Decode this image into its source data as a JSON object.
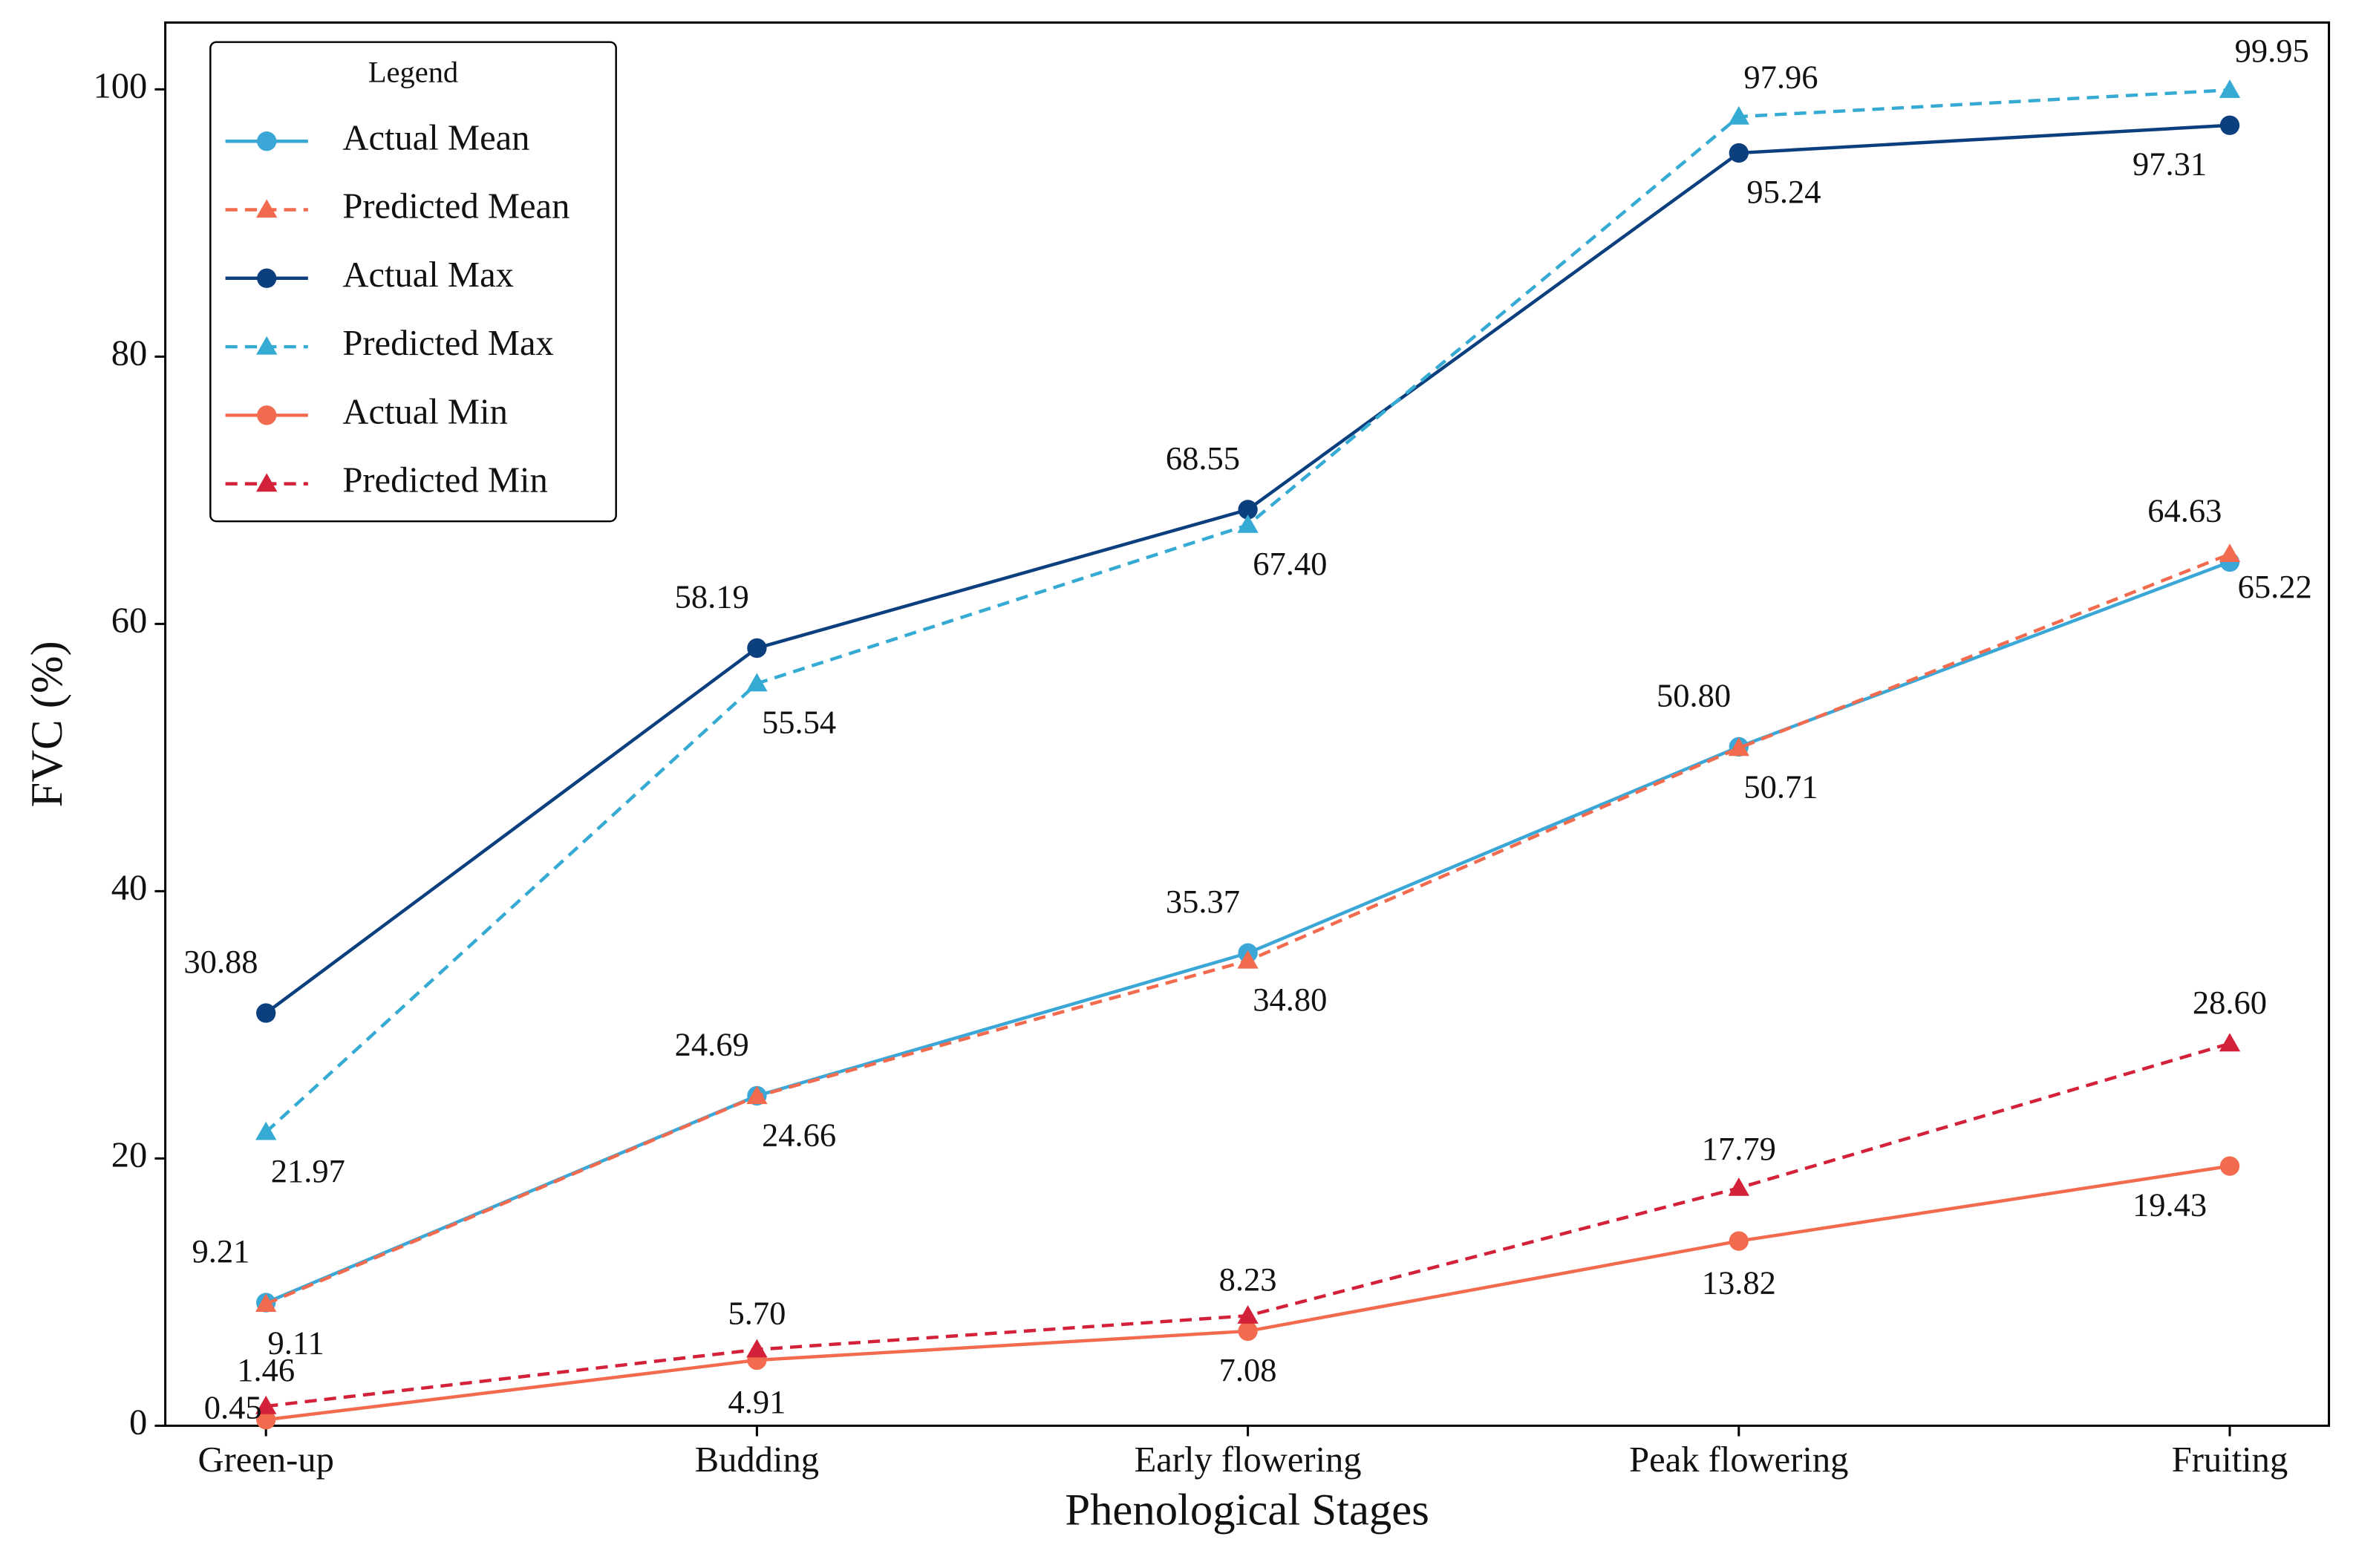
{
  "chart_data": {
    "type": "line",
    "x_label": "Phenological Stages",
    "y_label": "FVC (%)",
    "categories": [
      "Green-up",
      "Budding",
      "Early flowering",
      "Peak flowering",
      "Fruiting"
    ],
    "ylim": [
      0,
      105
    ],
    "yticks": [
      0,
      20,
      40,
      60,
      80,
      100
    ],
    "grid": false,
    "legend": {
      "title": "Legend",
      "position": "upper left"
    },
    "series": [
      {
        "name": "Actual Mean",
        "color": "#3ba7d6",
        "line_style": "solid",
        "marker": "circle",
        "values": [
          9.21,
          24.69,
          35.37,
          50.8,
          64.63
        ],
        "value_labels": [
          "9.21",
          "24.69",
          "35.37",
          "50.80",
          "64.63"
        ]
      },
      {
        "name": "Predicted Mean",
        "color": "#f26b4f",
        "line_style": "dashed",
        "marker": "triangle",
        "values": [
          9.11,
          24.66,
          34.8,
          50.71,
          65.22
        ],
        "value_labels": [
          "9.11",
          "24.66",
          "34.80",
          "50.71",
          "65.22"
        ]
      },
      {
        "name": "Actual Max",
        "color": "#0c3f7d",
        "line_style": "solid",
        "marker": "circle",
        "values": [
          30.88,
          58.19,
          68.55,
          95.24,
          97.31
        ],
        "value_labels": [
          "30.88",
          "58.19",
          "68.55",
          "95.24",
          "97.31"
        ]
      },
      {
        "name": "Predicted Max",
        "color": "#35aad3",
        "line_style": "dashed",
        "marker": "triangle",
        "values": [
          21.97,
          55.54,
          67.4,
          97.96,
          99.95
        ],
        "value_labels": [
          "21.97",
          "55.54",
          "67.40",
          "97.96",
          "99.95"
        ]
      },
      {
        "name": "Actual Min",
        "color": "#f26b4f",
        "line_style": "solid",
        "marker": "circle",
        "values": [
          0.45,
          4.91,
          7.08,
          13.82,
          19.43
        ],
        "value_labels": [
          "0.45",
          "4.91",
          "7.08",
          "13.82",
          "19.43"
        ]
      },
      {
        "name": "Predicted Min",
        "color": "#d4213a",
        "line_style": "dashed",
        "marker": "triangle",
        "values": [
          1.46,
          5.7,
          8.23,
          17.79,
          28.6
        ],
        "value_labels": [
          "1.46",
          "5.70",
          "8.23",
          "17.79",
          "28.60"
        ]
      }
    ]
  }
}
